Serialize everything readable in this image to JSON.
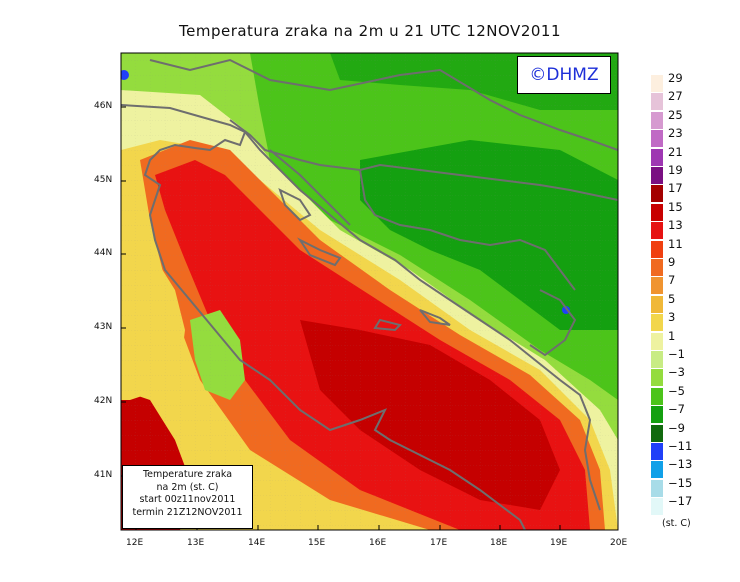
{
  "title": "Temperatura zraka na 2m u 21 UTC 12NOV2011",
  "copyright": "©DHMZ",
  "infobox": {
    "line1": "Temperature zraka",
    "line2": "na 2m (st. C)",
    "line3": "start 00z11nov2011",
    "line4": "termin 21Z12NOV2011"
  },
  "lat_labels": [
    "46N",
    "45N",
    "44N",
    "43N",
    "42N",
    "41N"
  ],
  "lon_labels": [
    "12E",
    "13E",
    "14E",
    "15E",
    "16E",
    "17E",
    "18E",
    "19E",
    "20E"
  ],
  "colorbar": {
    "unit": "(st. C)",
    "labels": [
      "29",
      "27",
      "25",
      "23",
      "21",
      "19",
      "17",
      "15",
      "13",
      "11",
      "9",
      "7",
      "5",
      "3",
      "1",
      "−1",
      "−3",
      "−5",
      "−7",
      "−9",
      "−11",
      "−13",
      "−15",
      "−17"
    ],
    "colors": [
      "#fdefdf",
      "#e6c3d9",
      "#d69ad0",
      "#c06ac5",
      "#9e36b2",
      "#7a0f82",
      "#a40000",
      "#c80000",
      "#e61212",
      "#f04010",
      "#f06a20",
      "#f09430",
      "#f0b838",
      "#f2d64c",
      "#eef2a0",
      "#c8ec84",
      "#94dc3e",
      "#4cc41a",
      "#14a010",
      "#116a0e",
      "#2040f8",
      "#10a0e8",
      "#a8dce8",
      "#e2f8f8"
    ]
  },
  "map_colors": {
    "very_warm": "#c50000",
    "warm": "#e81212",
    "orange": "#f06a20",
    "light_orange": "#f09430",
    "yellow": "#f2d64c",
    "pale_yellow": "#eef2a0",
    "light_green": "#94dc3e",
    "green": "#4cc41a",
    "dark_green": "#14a010",
    "blue": "#2040f8",
    "coast": "#6e6e6e"
  }
}
